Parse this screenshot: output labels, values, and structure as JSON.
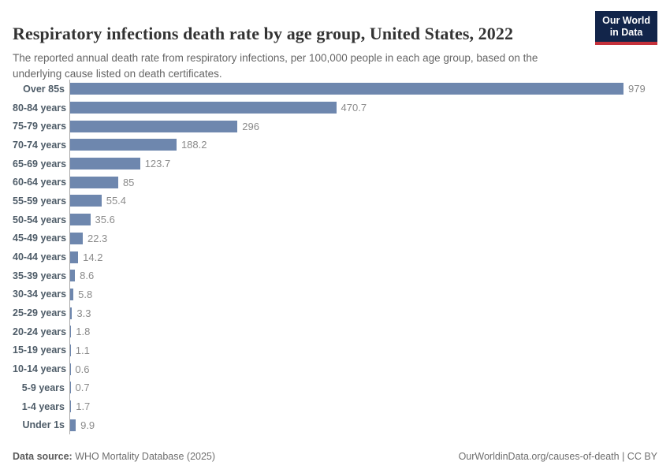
{
  "header": {
    "title": "Respiratory infections death rate by age group, United States, 2022",
    "subtitle": "The reported annual death rate from respiratory infections, per 100,000 people in each age group, based on the underlying cause listed on death certificates.",
    "logo_line1": "Our World",
    "logo_line2": "in Data"
  },
  "chart_data": {
    "type": "bar",
    "orientation": "horizontal",
    "title": "Respiratory infections death rate by age group, United States, 2022",
    "xlabel": "",
    "ylabel": "",
    "xlim": [
      0,
      1000
    ],
    "grid": false,
    "legend": false,
    "categories": [
      "Over 85s",
      "80-84 years",
      "75-79 years",
      "70-74 years",
      "65-69 years",
      "60-64 years",
      "55-59 years",
      "50-54 years",
      "45-49 years",
      "40-44 years",
      "35-39 years",
      "30-34 years",
      "25-29 years",
      "20-24 years",
      "15-19 years",
      "10-14 years",
      "5-9 years",
      "1-4 years",
      "Under 1s"
    ],
    "values": [
      979,
      470.7,
      296,
      188.2,
      123.7,
      85,
      55.4,
      35.6,
      22.3,
      14.2,
      8.6,
      5.8,
      3.3,
      1.8,
      1.1,
      0.6,
      0.7,
      1.7,
      9.9
    ],
    "value_labels": [
      "979",
      "470.7",
      "296",
      "188.2",
      "123.7",
      "85",
      "55.4",
      "35.6",
      "22.3",
      "14.2",
      "8.6",
      "5.8",
      "3.3",
      "1.8",
      "1.1",
      "0.6",
      "0.7",
      "1.7",
      "9.9"
    ],
    "bar_color": "#6e87ae",
    "axis_color": "#a9a9a9"
  },
  "colors": {
    "logo_navy": "#12254a",
    "logo_red": "#c5313b",
    "bar": "#6e87ae"
  },
  "footer": {
    "source_label": "Data source:",
    "source_value": " WHO Mortality Database (2025)",
    "attribution": "OurWorldinData.org/causes-of-death | CC BY"
  }
}
